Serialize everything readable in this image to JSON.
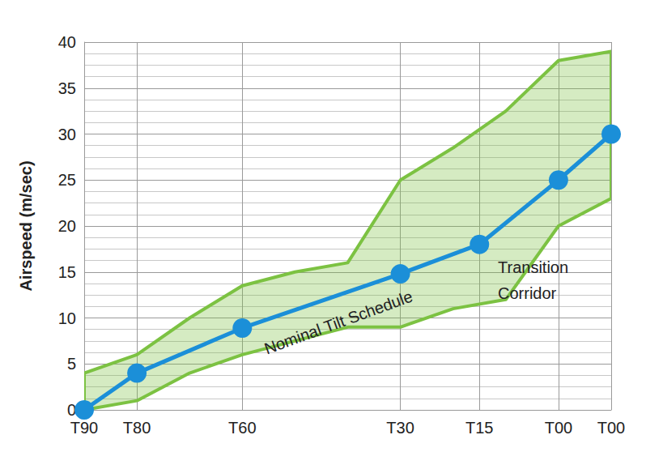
{
  "chart_data": {
    "type": "line",
    "ylabel": "Airspeed (m/sec)",
    "xlim": [
      0,
      10
    ],
    "xticks": [
      {
        "value": 0,
        "label": "T90"
      },
      {
        "value": 1,
        "label": "T80"
      },
      {
        "value": 3,
        "label": "T60"
      },
      {
        "value": 6,
        "label": "T30"
      },
      {
        "value": 7.5,
        "label": "T15"
      },
      {
        "value": 9,
        "label": "T00"
      },
      {
        "value": 10,
        "label": "T00"
      }
    ],
    "ylim": [
      0,
      40
    ],
    "yticks": [
      0,
      5,
      10,
      15,
      20,
      25,
      30,
      35,
      40
    ],
    "grid": true,
    "series": [
      {
        "name": "Nominal Tilt Schedule",
        "type": "line",
        "color": "#1b8fd8",
        "marker": "circle",
        "x": [
          0,
          1,
          3,
          6,
          7.5,
          9,
          10
        ],
        "values": [
          0,
          4,
          8.9,
          14.8,
          18,
          25,
          30
        ]
      },
      {
        "name": "Transition Corridor",
        "type": "band",
        "color": "#7cc242",
        "x": [
          0,
          1,
          2,
          3,
          4,
          5,
          6,
          7,
          8,
          9,
          10
        ],
        "lower": [
          0,
          1,
          4,
          6,
          7.5,
          9,
          9,
          11,
          12,
          20,
          23
        ],
        "upper": [
          4,
          6,
          10,
          13.5,
          15,
          16,
          25,
          28.5,
          32.5,
          38,
          39
        ]
      }
    ]
  }
}
